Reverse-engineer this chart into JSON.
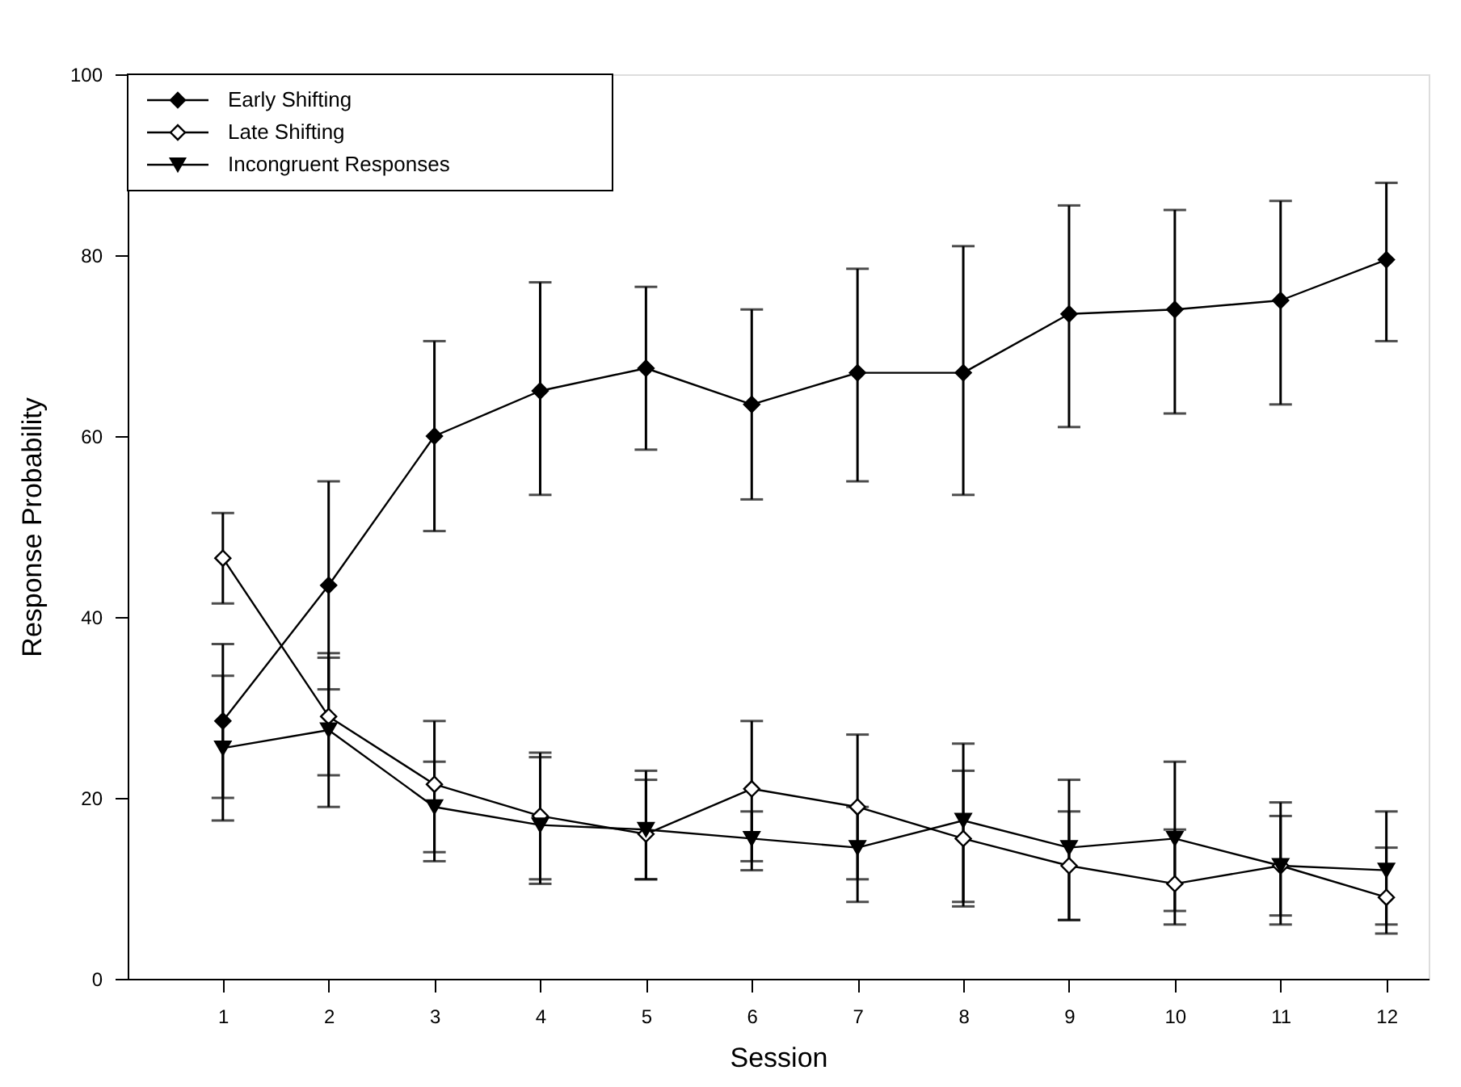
{
  "chart_data": {
    "type": "line",
    "xlabel": "Session",
    "ylabel": "Response Probability",
    "x": [
      1,
      2,
      3,
      4,
      5,
      6,
      7,
      8,
      9,
      10,
      11,
      12
    ],
    "xlim": [
      0.1,
      12.4
    ],
    "xticks": [
      1,
      2,
      3,
      4,
      5,
      6,
      7,
      8,
      9,
      10,
      11,
      12
    ],
    "ylim": [
      0,
      100
    ],
    "yticks": [
      0,
      20,
      40,
      60,
      80,
      100
    ],
    "grid": false,
    "legend": "top left",
    "line_style": "solid",
    "series": [
      {
        "name": "Early Shifting",
        "color": "#000000",
        "marker": "diamond",
        "values": [
          28.5,
          43.5,
          60,
          65,
          67.5,
          63.5,
          67,
          67,
          73.5,
          74,
          75,
          79.5
        ],
        "errors": [
          [
            20,
            37
          ],
          [
            32,
            55
          ],
          [
            49.5,
            70.5
          ],
          [
            53.5,
            77
          ],
          [
            58.5,
            76.5
          ],
          [
            53,
            74
          ],
          [
            55,
            78.5
          ],
          [
            53.5,
            81
          ],
          [
            61,
            85.5
          ],
          [
            62.5,
            85
          ],
          [
            63.5,
            86
          ],
          [
            70.5,
            88
          ]
        ]
      },
      {
        "name": "Late Shifting",
        "color": "#000000",
        "colors": [
          "#ffffff",
          "#ffffff",
          "#ffffff",
          "#ffffff",
          "#ffffff",
          "#ffffff",
          "#ffffff",
          "#ffffff",
          "#ffffff",
          "#ffffff",
          "#ffffff",
          "#ffffff"
        ],
        "marker": "diamond",
        "values": [
          46.5,
          29,
          21.5,
          18,
          16,
          21,
          19,
          15.5,
          12.5,
          10.5,
          12.5,
          9
        ],
        "errors": [
          [
            41.5,
            51.5
          ],
          [
            22.5,
            35.5
          ],
          [
            14,
            28.5
          ],
          [
            11,
            25
          ],
          [
            11,
            23
          ],
          [
            13,
            28.5
          ],
          [
            11,
            27
          ],
          [
            8.5,
            23
          ],
          [
            6.5,
            18.5
          ],
          [
            7.5,
            24
          ],
          [
            7,
            18
          ],
          [
            6,
            18.5
          ]
        ]
      },
      {
        "name": "Incongruent Responses",
        "color": "#000000",
        "marker": "triangle",
        "values": [
          25.5,
          27.5,
          19,
          17,
          16.5,
          15.5,
          14.5,
          17.5,
          14.5,
          15.5,
          12.5,
          12
        ],
        "errors": [
          [
            17.5,
            33.5
          ],
          [
            19,
            36
          ],
          [
            13,
            24
          ],
          [
            10.5,
            24.5
          ],
          [
            11,
            22
          ],
          [
            12,
            18.5
          ],
          [
            8.5,
            19
          ],
          [
            8,
            26
          ],
          [
            6.5,
            22
          ],
          [
            6,
            16.5
          ],
          [
            6,
            19.5
          ],
          [
            5,
            14.5
          ]
        ]
      }
    ]
  }
}
